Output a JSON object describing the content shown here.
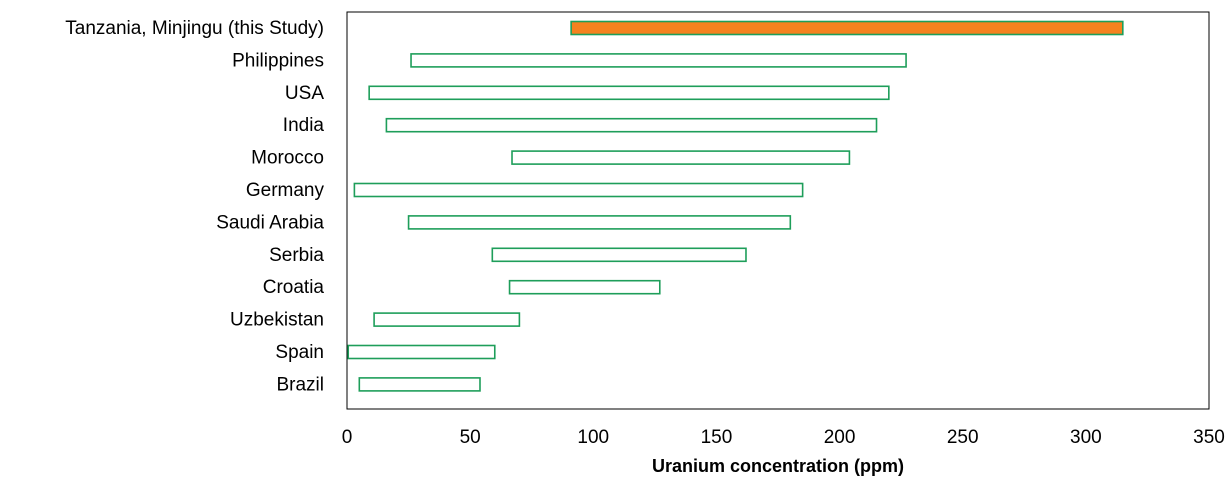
{
  "chart_data": {
    "type": "bar",
    "orientation": "horizontal-range",
    "xlabel": "Uranium concentration (ppm)",
    "xlim": [
      0,
      350
    ],
    "xticks": [
      "0",
      "50",
      "100",
      "150",
      "200",
      "250",
      "300",
      "350"
    ],
    "grid": false,
    "legend": "none",
    "colors": {
      "highlight_fill": "#F5821F",
      "highlight_stroke": "#1E9E5A",
      "range_stroke": "#1E9E5A",
      "frame": "#000000"
    },
    "categories": [
      "Tanzania, Minjingu (this Study)",
      "Philippines",
      "USA",
      "India",
      "Morocco",
      "Germany",
      "Saudi Arabia",
      "Serbia",
      "Croatia",
      "Uzbekistan",
      "Spain",
      "Brazil"
    ],
    "ranges": [
      [
        91,
        315
      ],
      [
        26,
        227
      ],
      [
        9,
        220
      ],
      [
        16,
        215
      ],
      [
        67,
        204
      ],
      [
        3,
        185
      ],
      [
        25,
        180
      ],
      [
        59,
        162
      ],
      [
        66,
        127
      ],
      [
        11,
        70
      ],
      [
        0.5,
        60
      ],
      [
        5,
        54
      ]
    ],
    "highlight_index": 0
  }
}
